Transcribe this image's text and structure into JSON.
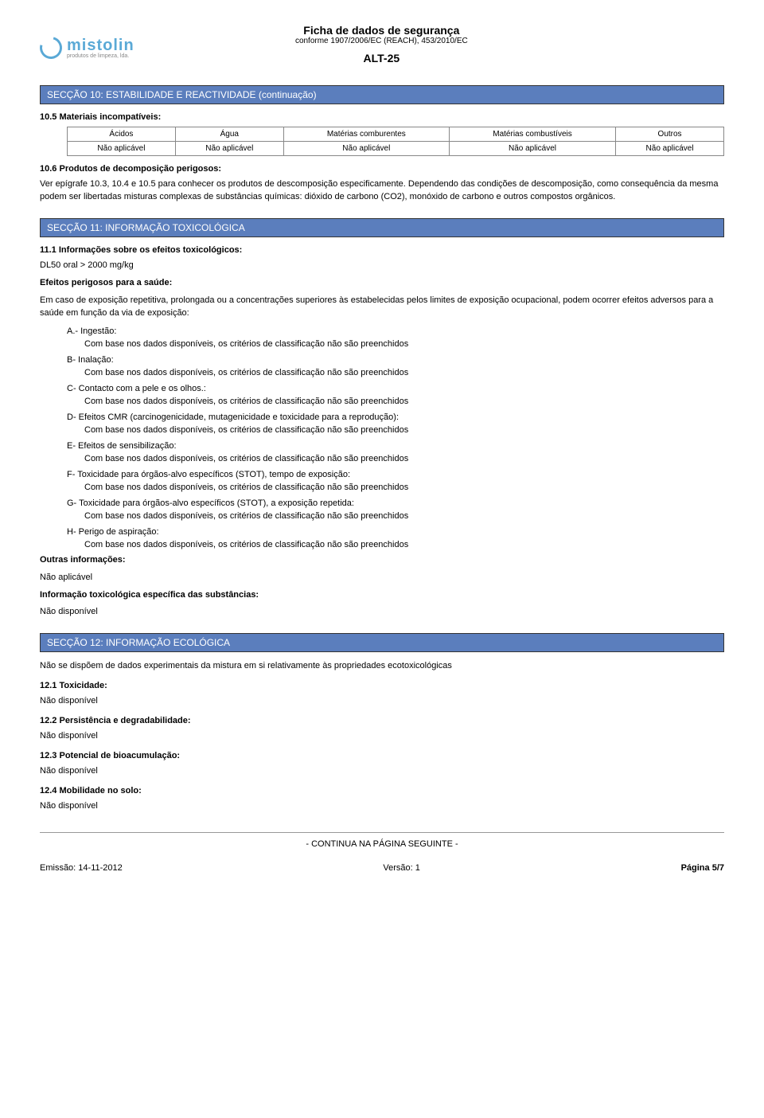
{
  "header": {
    "title": "Ficha de dados de segurança",
    "subtitle": "conforme 1907/2006/EC (REACH), 453/2010/EC",
    "code": "ALT-25"
  },
  "logo": {
    "name": "mistolin",
    "tagline": "produtos de limpeza, lda.",
    "swirl_color": "#5aa9d6",
    "text_color": "#5aa9d6"
  },
  "colors": {
    "section_bar_bg": "#5b7ebd",
    "section_bar_text": "#ffffff",
    "border": "#888888",
    "page_bg": "#ffffff"
  },
  "section10": {
    "title": "SECÇÃO 10: ESTABILIDADE E REACTIVIDADE (continuação)",
    "s105": {
      "num": "10.5",
      "title": "Materiais incompatíveis:",
      "table": {
        "headers": [
          "Ácidos",
          "Água",
          "Matérias comburentes",
          "Matérias combustíveis",
          "Outros"
        ],
        "row": [
          "Não aplicável",
          "Não aplicável",
          "Não aplicável",
          "Não aplicável",
          "Não aplicável"
        ]
      }
    },
    "s106": {
      "num": "10.6",
      "title": "Produtos de decomposição perigosos:",
      "body": "Ver epígrafe 10.3, 10.4 e 10.5 para conhecer os produtos de descomposição especificamente. Dependendo das condições de descomposição, como consequência da mesma podem ser libertadas misturas complexas de substâncias químicas: dióxido de carbono (CO2), monóxido de carbono e outros compostos orgânicos."
    }
  },
  "section11": {
    "title": "SECÇÃO 11: INFORMAÇÃO TOXICOLÓGICA",
    "s111": {
      "num": "11.1",
      "title": "Informações sobre os efeitos toxicológicos:",
      "dl50": "DL50 oral > 2000 mg/kg",
      "effects_title": "Efeitos perigosos para a saúde:",
      "effects_intro": "Em caso de exposição repetitiva, prolongada ou a concentrações superiores às estabelecidas pelos limites de exposição ocupacional, podem ocorrer efeitos adversos para a saúde em função da via de exposição:",
      "items": [
        {
          "label": "A.- Ingestão:",
          "body": "Com base nos dados disponíveis, os critérios de classificação não são preenchidos"
        },
        {
          "label": "B-  Inalação:",
          "body": "Com base nos dados disponíveis, os critérios de classificação não são preenchidos"
        },
        {
          "label": "C-  Contacto com a pele e os olhos.:",
          "body": "Com base nos dados disponíveis, os critérios de classificação não são preenchidos"
        },
        {
          "label": "D-  Efeitos CMR (carcinogenicidade, mutagenicidade e toxicidade para a reprodução):",
          "body": "Com base nos dados disponíveis, os critérios de classificação não são preenchidos"
        },
        {
          "label": "E-  Efeitos de sensibilização:",
          "body": "Com base nos dados disponíveis, os critérios de classificação não são preenchidos"
        },
        {
          "label": "F-  Toxicidade para órgãos-alvo específicos (STOT), tempo de exposição:",
          "body": "Com base nos dados disponíveis, os critérios de classificação não são preenchidos"
        },
        {
          "label": "G-  Toxicidade para órgãos-alvo específicos (STOT), a exposição repetida:",
          "body": "Com base nos dados disponíveis, os critérios de classificação não são preenchidos"
        },
        {
          "label": "H-  Perigo de aspiração:",
          "body": "Com base nos dados disponíveis, os critérios de classificação não são preenchidos"
        }
      ],
      "other_info_title": "Outras informações:",
      "other_info_body": "Não aplicável",
      "tox_info_title": "Informação toxicológica específica das substâncias:",
      "tox_info_body": "Não disponível"
    }
  },
  "section12": {
    "title": "SECÇÃO 12: INFORMAÇÃO ECOLÓGICA",
    "intro": "Não se dispõem de dados experimentais da mistura em si relativamente às propriedades ecotoxicológicas",
    "s121": {
      "num": "12.1",
      "title": "Toxicidade:",
      "body": "Não disponível"
    },
    "s122": {
      "num": "12.2",
      "title": "Persistência e degradabilidade:",
      "body": "Não disponível"
    },
    "s123": {
      "num": "12.3",
      "title": "Potencial de bioacumulação:",
      "body": "Não disponível"
    },
    "s124": {
      "num": "12.4",
      "title": "Mobilidade no solo:",
      "body": "Não disponível"
    }
  },
  "footer": {
    "continue": "- CONTINUA NA PÁGINA SEGUINTE -",
    "emission_label": "Emissão: ",
    "emission_date": "14-11-2012",
    "version_label": "Versão: ",
    "version": "1",
    "page_label": "Página ",
    "page": "5/7"
  }
}
